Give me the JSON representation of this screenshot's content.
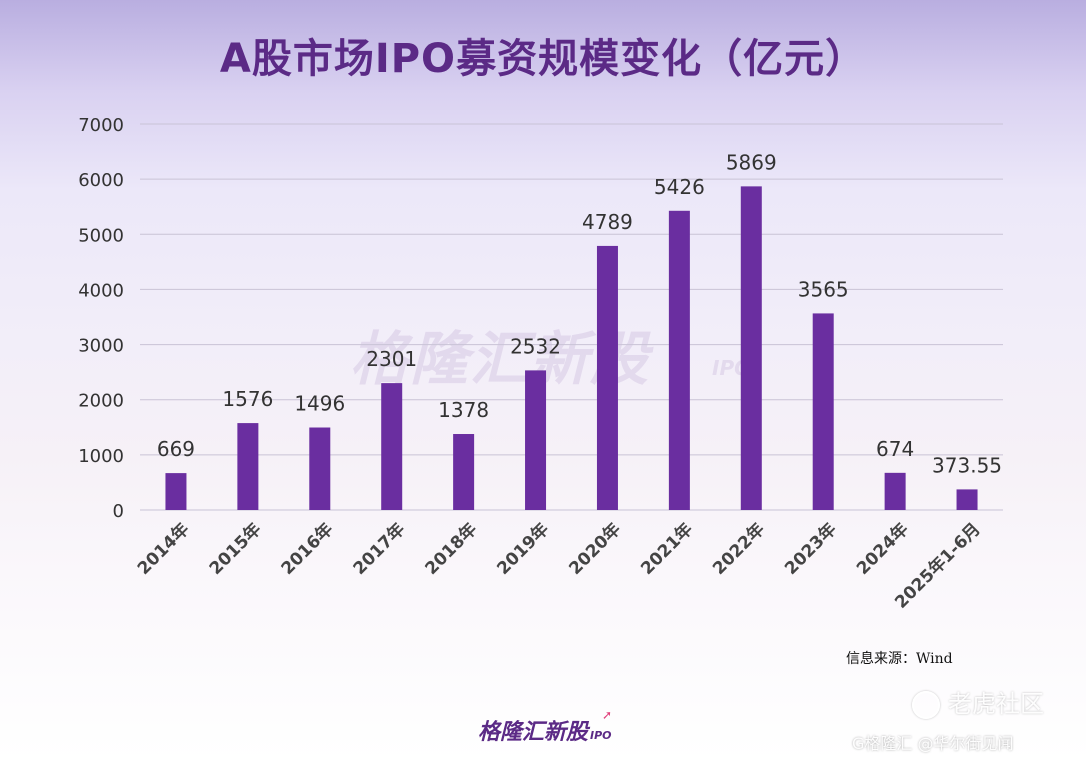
{
  "title": "A股市场IPO募资规模变化（亿元）",
  "chart_data": {
    "type": "bar",
    "title": "A股市场IPO募资规模变化（亿元）",
    "xlabel": "",
    "ylabel": "",
    "ylim": [
      0,
      7000
    ],
    "yticks": [
      "0",
      "1000",
      "2000",
      "3000",
      "4000",
      "5000",
      "6000",
      "7000"
    ],
    "grid": true,
    "categories": [
      "2014年",
      "2015年",
      "2016年",
      "2017年",
      "2018年",
      "2019年",
      "2020年",
      "2021年",
      "2022年",
      "2023年",
      "2024年",
      "2025年1-6月"
    ],
    "values": [
      669,
      1576,
      1496,
      2301,
      1378,
      2532,
      4789,
      5426,
      5869,
      3565,
      674,
      373.55
    ],
    "value_labels": [
      "669",
      "1576",
      "1496",
      "2301",
      "1378",
      "2532",
      "4789",
      "5426",
      "5869",
      "3565",
      "674",
      "373.55"
    ],
    "bar_color": "#6a2ea0"
  },
  "source": "信息来源：Wind",
  "watermark": {
    "text": "格隆汇新股",
    "sub": "IPO"
  },
  "logo": {
    "text": "格隆汇新股",
    "sub": "IPO"
  },
  "overlay": {
    "brand": "老虎社区",
    "credit": "G格隆汇 @华尔街见闻"
  }
}
